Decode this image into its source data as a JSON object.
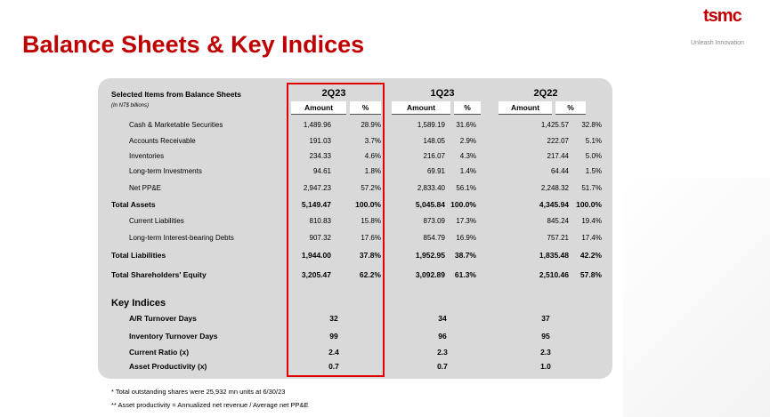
{
  "header": {
    "title": "Balance Sheets & Key Indices",
    "logo": "tsmc",
    "tagline": "Unleash Innovation"
  },
  "table": {
    "caption": "Selected Items from Balance Sheets",
    "unit_note": "(In NT$ billions)",
    "periods": [
      "2Q23",
      "1Q23",
      "2Q22"
    ],
    "columns": [
      "Amount",
      "%"
    ],
    "rows": [
      {
        "label": "Cash & Marketable Securities",
        "bold": false,
        "cells": [
          "1,489.96",
          "28.9%",
          "1,589.19",
          "31.6%",
          "1,425.57",
          "32.8%"
        ]
      },
      {
        "label": "Accounts Receivable",
        "bold": false,
        "cells": [
          "191.03",
          "3.7%",
          "148.05",
          "2.9%",
          "222.07",
          "5.1%"
        ]
      },
      {
        "label": "Inventories",
        "bold": false,
        "cells": [
          "234.33",
          "4.6%",
          "216.07",
          "4.3%",
          "217.44",
          "5.0%"
        ]
      },
      {
        "label": "Long-term Investments",
        "bold": false,
        "cells": [
          "94.61",
          "1.8%",
          "69.91",
          "1.4%",
          "64.44",
          "1.5%"
        ]
      },
      {
        "label": "Net PP&E",
        "bold": false,
        "cells": [
          "2,947.23",
          "57.2%",
          "2,833.40",
          "56.1%",
          "2,248.32",
          "51.7%"
        ]
      },
      {
        "label": "Total Assets",
        "bold": true,
        "cells": [
          "5,149.47",
          "100.0%",
          "5,045.84",
          "100.0%",
          "4,345.94",
          "100.0%"
        ]
      },
      {
        "label": "Current Liabilities",
        "bold": false,
        "cells": [
          "810.83",
          "15.8%",
          "873.09",
          "17.3%",
          "845.24",
          "19.4%"
        ]
      },
      {
        "label": "Long-term Interest-bearing Debts",
        "bold": false,
        "cells": [
          "907.32",
          "17.6%",
          "854.79",
          "16.9%",
          "757.21",
          "17.4%"
        ]
      },
      {
        "label": "Total Liabilities",
        "bold": true,
        "cells": [
          "1,944.00",
          "37.8%",
          "1,952.95",
          "38.7%",
          "1,835.48",
          "42.2%"
        ]
      },
      {
        "label": "Total Shareholders' Equity",
        "bold": true,
        "cells": [
          "3,205.47",
          "62.2%",
          "3,092.89",
          "61.3%",
          "2,510.46",
          "57.8%"
        ]
      }
    ]
  },
  "indices": {
    "title": "Key Indices",
    "rows": [
      {
        "label": "A/R Turnover Days",
        "cells": [
          "32",
          "34",
          "37"
        ]
      },
      {
        "label": "Inventory Turnover Days",
        "cells": [
          "99",
          "96",
          "95"
        ]
      },
      {
        "label": "Current Ratio (x)",
        "cells": [
          "2.4",
          "2.3",
          "2.3"
        ]
      },
      {
        "label": "Asset Productivity (x)",
        "cells": [
          "0.7",
          "0.7",
          "1.0"
        ]
      }
    ]
  },
  "footnotes": [
    "*  Total outstanding shares were 25,932 mn units at 6/30/23",
    "** Asset productivity = Annualized net revenue / Average net PP&E"
  ]
}
